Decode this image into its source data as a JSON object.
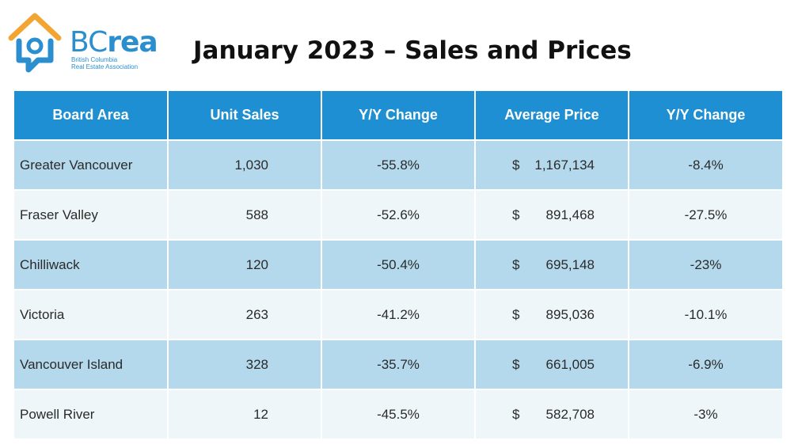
{
  "logo": {
    "brand_prefix": "BC",
    "brand_suffix": "rea",
    "tagline_line1": "British Columbia",
    "tagline_line2": "Real Estate Association",
    "icon": "house-icon",
    "colors": {
      "blue": "#2b8fcf",
      "orange": "#f3a533"
    }
  },
  "title": "January 2023 – Sales and Prices",
  "colors": {
    "header_bg": "#1e8fd2",
    "row_dark": "#b5d9ec",
    "row_light": "#eef6f9"
  },
  "chart_data": {
    "type": "table",
    "title": "January 2023 – Sales and Prices",
    "columns": [
      "Board Area",
      "Unit Sales",
      "Y/Y Change",
      "Average Price",
      "Y/Y  Change"
    ],
    "rows": [
      {
        "area": "Greater Vancouver",
        "unit_sales": "1,030",
        "sales_yy": "-55.8%",
        "currency": "$",
        "avg_price": "1,167,134",
        "price_yy": "-8.4%"
      },
      {
        "area": "Fraser Valley",
        "unit_sales": "588",
        "sales_yy": "-52.6%",
        "currency": "$",
        "avg_price": "891,468",
        "price_yy": "-27.5%"
      },
      {
        "area": "Chilliwack",
        "unit_sales": "120",
        "sales_yy": "-50.4%",
        "currency": "$",
        "avg_price": "695,148",
        "price_yy": "-23%"
      },
      {
        "area": "Victoria",
        "unit_sales": "263",
        "sales_yy": "-41.2%",
        "currency": "$",
        "avg_price": "895,036",
        "price_yy": "-10.1%"
      },
      {
        "area": "Vancouver Island",
        "unit_sales": "328",
        "sales_yy": "-35.7%",
        "currency": "$",
        "avg_price": "661,005",
        "price_yy": "-6.9%"
      },
      {
        "area": "Powell River",
        "unit_sales": "12",
        "sales_yy": "-45.5%",
        "currency": "$",
        "avg_price": "582,708",
        "price_yy": "-3%"
      }
    ]
  }
}
